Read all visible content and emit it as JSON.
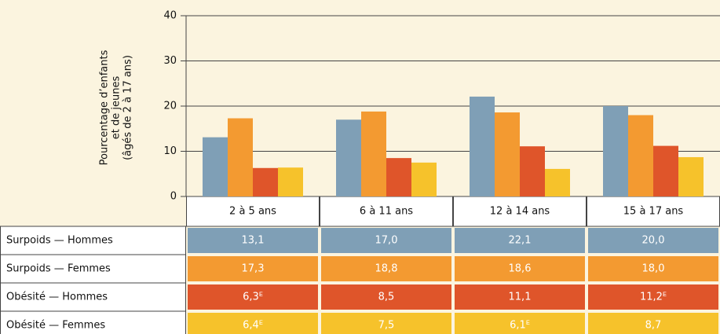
{
  "chart_data": {
    "type": "bar",
    "y_label": [
      "Pourcentage d’enfants",
      "et de jeunes",
      "(âgés de 2 à 17 ans)"
    ],
    "categories": [
      "2 à 5 ans",
      "6 à 11 ans",
      "12 à 14 ans",
      "15 à 17 ans"
    ],
    "series": [
      {
        "name": "Surpoids — Hommes",
        "color": "#7f9fb6",
        "values": [
          13.1,
          17.0,
          22.1,
          20.0
        ],
        "value_labels": [
          "13,1",
          "17,0",
          "22,1",
          "20,0"
        ]
      },
      {
        "name": "Surpoids — Femmes",
        "color": "#f39a31",
        "values": [
          17.3,
          18.8,
          18.6,
          18.0
        ],
        "value_labels": [
          "17,3",
          "18,8",
          "18,6",
          "18,0"
        ]
      },
      {
        "name": "Obésité — Hommes",
        "color": "#df552a",
        "values": [
          6.3,
          8.5,
          11.1,
          11.2
        ],
        "value_labels": [
          "6,3ᴱ",
          "8,5",
          "11,1",
          "11,2ᴱ"
        ]
      },
      {
        "name": "Obésité — Femmes",
        "color": "#f6c22b",
        "values": [
          6.4,
          7.5,
          6.1,
          8.7
        ],
        "value_labels": [
          "6,4ᴱ",
          "7,5",
          "6,1ᴱ",
          "8,7"
        ]
      }
    ],
    "ylim": [
      0,
      40
    ],
    "yticks": [
      0,
      10,
      20,
      30,
      40
    ],
    "grid": true
  }
}
